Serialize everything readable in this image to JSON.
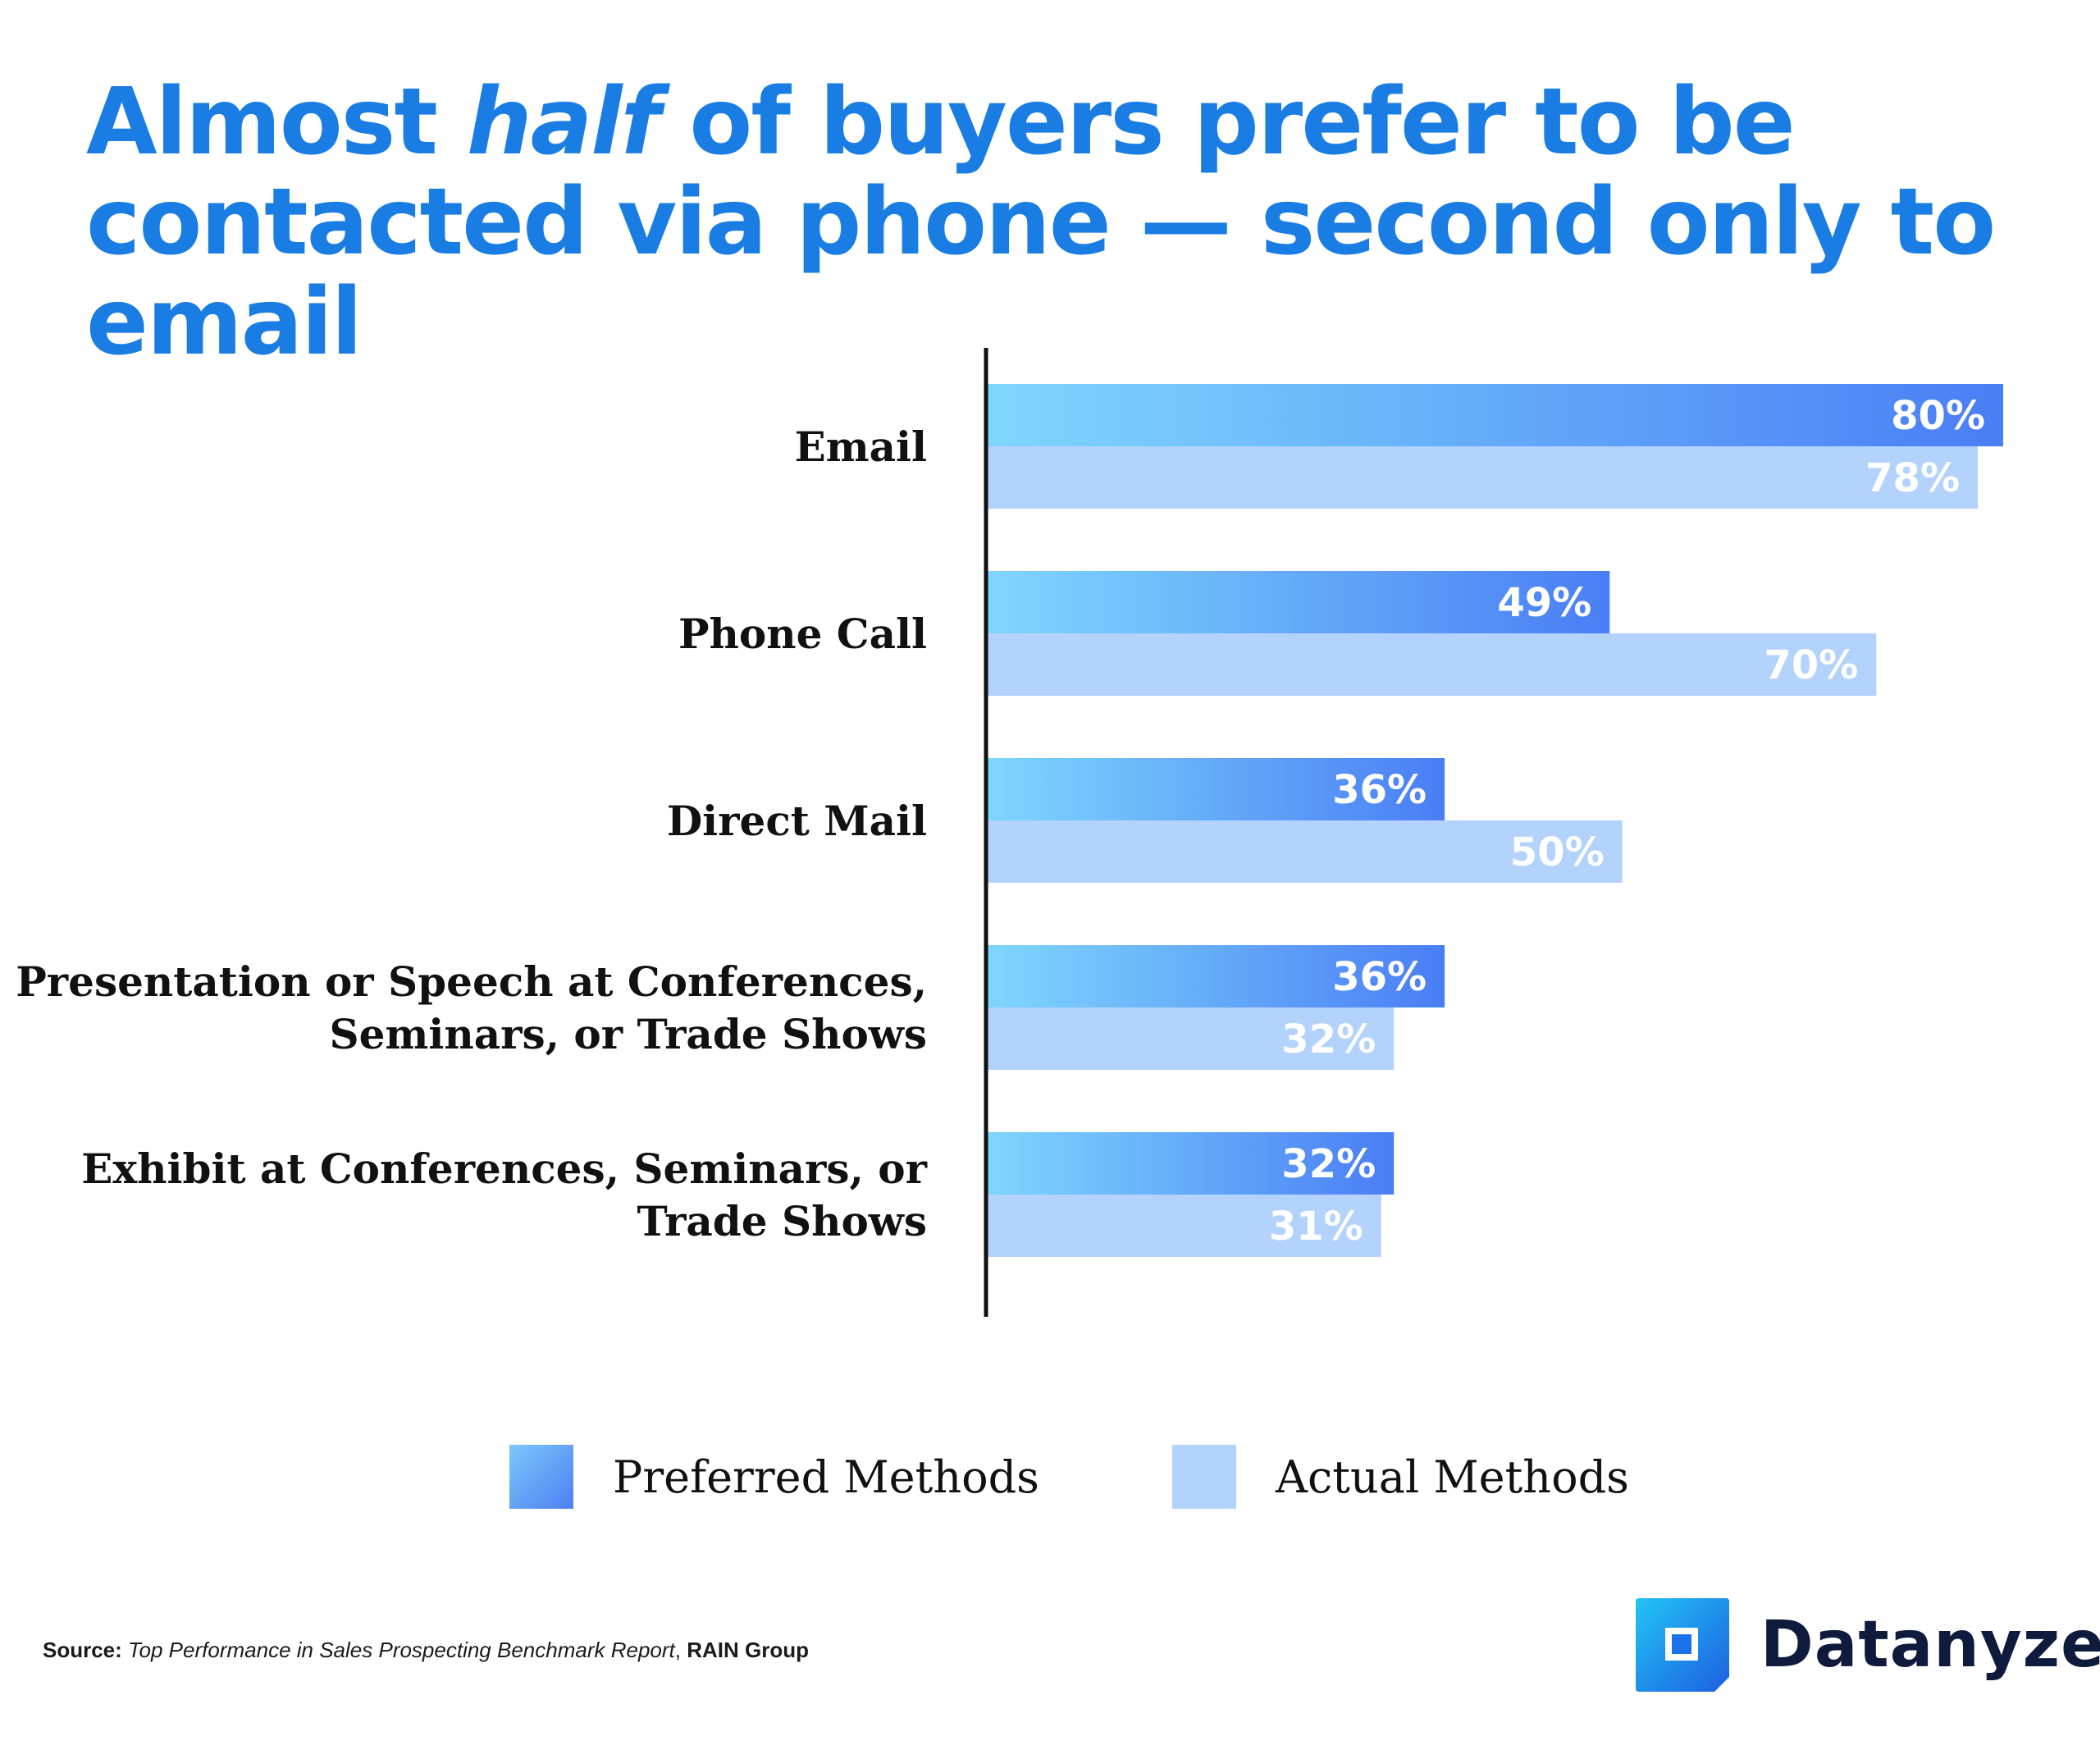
{
  "title": {
    "part1": "Almost ",
    "emphasis": "half",
    "part2": " of buyers prefer to be contacted via phone — second only to email"
  },
  "chart_data": {
    "type": "bar",
    "orientation": "horizontal",
    "categories": [
      [
        "Email"
      ],
      [
        "Phone Call"
      ],
      [
        "Direct Mail"
      ],
      [
        "Presentation or Speech at Conferences,",
        "Seminars, or Trade Shows"
      ],
      [
        "Exhibit at Conferences, Seminars, or",
        "Trade Shows"
      ]
    ],
    "series": [
      {
        "name": "Preferred Methods",
        "values": [
          80,
          49,
          36,
          36,
          32
        ]
      },
      {
        "name": "Actual Methods",
        "values": [
          78,
          70,
          50,
          32,
          31
        ]
      }
    ],
    "value_suffix": "%",
    "xlim": [
      0,
      80
    ],
    "grid": false,
    "legend_position": "bottom",
    "colors": {
      "preferred_start": "#7fd6fd",
      "preferred_end": "#4a7ef5",
      "actual": "#b3d3fd",
      "axis": "#111111",
      "label_text": "#ffffff"
    }
  },
  "legend": {
    "preferred": "Preferred Methods",
    "actual": "Actual Methods"
  },
  "source": {
    "label": "Source:",
    "report": "Top Performance in Sales Prospecting Benchmark Report",
    "separator": ",",
    "org": "RAIN Group"
  },
  "brand": {
    "name": "Datanyze",
    "icon": "datanyze-logo-icon"
  }
}
